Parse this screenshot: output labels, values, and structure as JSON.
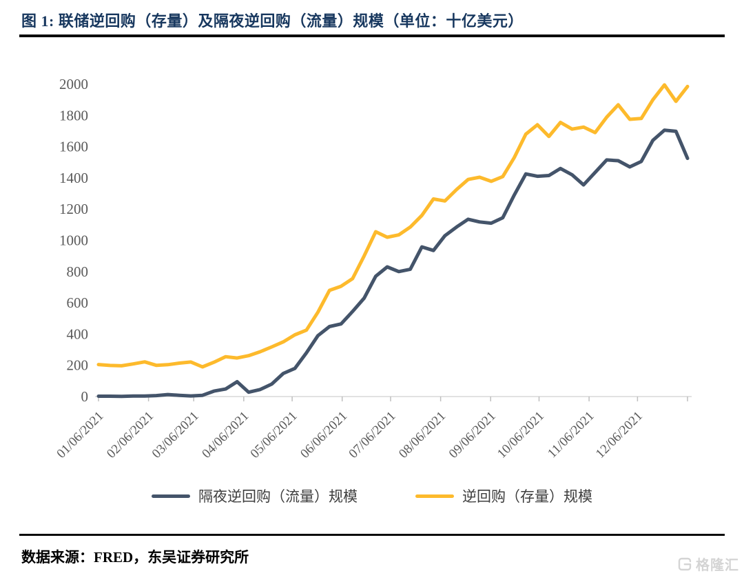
{
  "header": {
    "title": "图 1:  联储逆回购（存量）及隔夜逆回购（流量）规模（单位：十亿美元）"
  },
  "chart_data": {
    "type": "line",
    "title": "联储逆回购（存量）及隔夜逆回购（流量）规模（单位：十亿美元）",
    "grid": false,
    "legend_position": "bottom",
    "ylim": [
      0,
      2000
    ],
    "yticks": [
      0,
      200,
      400,
      600,
      800,
      1000,
      1200,
      1400,
      1600,
      1800,
      2000
    ],
    "x_axis_tick_labels": [
      "01/06/2021",
      "02/06/2021",
      "03/06/2021",
      "04/06/2021",
      "05/06/2021",
      "06/06/2021",
      "07/06/2021",
      "08/06/2021",
      "09/06/2021",
      "10/06/2021",
      "11/06/2021",
      "12/06/2021"
    ],
    "x_tick_days": [
      0,
      31,
      59,
      90,
      120,
      151,
      181,
      212,
      243,
      273,
      304,
      334,
      365
    ],
    "x_axis_total_days": 365,
    "x": [
      "01/06/2021",
      "01/13/2021",
      "01/20/2021",
      "01/27/2021",
      "02/03/2021",
      "02/10/2021",
      "02/17/2021",
      "02/24/2021",
      "03/03/2021",
      "03/10/2021",
      "03/17/2021",
      "03/24/2021",
      "03/31/2021",
      "04/07/2021",
      "04/14/2021",
      "04/21/2021",
      "04/28/2021",
      "05/05/2021",
      "05/12/2021",
      "05/19/2021",
      "05/26/2021",
      "06/02/2021",
      "06/09/2021",
      "06/16/2021",
      "06/23/2021",
      "06/30/2021",
      "07/07/2021",
      "07/14/2021",
      "07/21/2021",
      "07/28/2021",
      "08/04/2021",
      "08/11/2021",
      "08/18/2021",
      "08/25/2021",
      "09/01/2021",
      "09/08/2021",
      "09/15/2021",
      "09/22/2021",
      "09/29/2021",
      "10/06/2021",
      "10/13/2021",
      "10/20/2021",
      "10/27/2021",
      "11/03/2021",
      "11/10/2021",
      "11/17/2021",
      "11/24/2021",
      "12/01/2021",
      "12/08/2021",
      "12/15/2021",
      "12/22/2021",
      "12/29/2021"
    ],
    "series": [
      {
        "name": "隔夜逆回购（流量）规模",
        "color": "#44546A",
        "values": [
          2,
          2,
          1,
          3,
          3,
          6,
          13,
          8,
          4,
          8,
          35,
          48,
          95,
          28,
          45,
          80,
          148,
          180,
          280,
          390,
          448,
          465,
          545,
          630,
          770,
          830,
          800,
          815,
          958,
          935,
          1030,
          1085,
          1135,
          1118,
          1110,
          1145,
          1290,
          1425,
          1410,
          1415,
          1460,
          1420,
          1355,
          1435,
          1515,
          1510,
          1470,
          1505,
          1640,
          1705,
          1698,
          1525
        ]
      },
      {
        "name": "逆回购（存量）规模",
        "color": "#FDBA2C",
        "values": [
          205,
          199,
          197,
          209,
          222,
          200,
          204,
          214,
          221,
          190,
          220,
          255,
          247,
          262,
          287,
          318,
          350,
          395,
          425,
          540,
          680,
          706,
          755,
          900,
          1055,
          1020,
          1035,
          1085,
          1160,
          1265,
          1252,
          1325,
          1390,
          1404,
          1378,
          1408,
          1530,
          1680,
          1740,
          1665,
          1755,
          1712,
          1725,
          1690,
          1788,
          1868,
          1775,
          1780,
          1900,
          1995,
          1890,
          1985
        ]
      }
    ],
    "axis_color": "#D9D9D9",
    "tick_color": "#BFBFBF",
    "label_color": "#595959"
  },
  "footer": {
    "source": "数据来源：FRED，东吴证券研究所"
  },
  "watermark": {
    "text": "格隆汇"
  }
}
